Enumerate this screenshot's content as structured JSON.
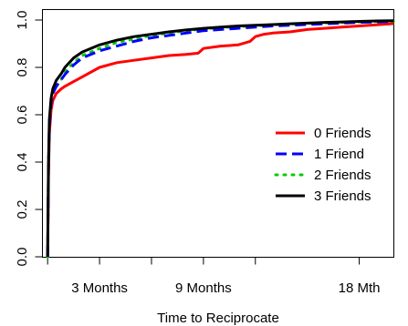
{
  "chart_data": {
    "type": "line",
    "xlabel": "Time to Reciprocate",
    "ylabel": "",
    "xlim": [
      -0.3,
      20
    ],
    "ylim": [
      0,
      1
    ],
    "grid": false,
    "legend_position": "right",
    "x_ticks": [
      {
        "value": 0,
        "label": ""
      },
      {
        "value": 3,
        "label": "3 Months"
      },
      {
        "value": 6,
        "label": ""
      },
      {
        "value": 9,
        "label": "9 Months"
      },
      {
        "value": 12,
        "label": ""
      },
      {
        "value": 18,
        "label": "18 Mth"
      }
    ],
    "y_ticks": [
      {
        "value": 0,
        "label": "0.0"
      },
      {
        "value": 0.2,
        "label": "0.2"
      },
      {
        "value": 0.4,
        "label": "0.4"
      },
      {
        "value": 0.6,
        "label": "0.6"
      },
      {
        "value": 0.8,
        "label": "0.8"
      },
      {
        "value": 1,
        "label": "1.0"
      }
    ],
    "series": [
      {
        "name": "0 Friends",
        "color": "#ff0000",
        "dash": "solid",
        "x": [
          0,
          0.05,
          0.1,
          0.2,
          0.3,
          0.5,
          0.8,
          1.0,
          1.5,
          2.0,
          3.0,
          4.0,
          5.0,
          6.0,
          7.0,
          8.0,
          8.7,
          9.0,
          10.0,
          11.0,
          11.7,
          12.0,
          12.5,
          13.0,
          14.0,
          15.0,
          16.0,
          17.0,
          18.0,
          19.0,
          20.0
        ],
        "y": [
          0,
          0.35,
          0.52,
          0.62,
          0.66,
          0.69,
          0.71,
          0.72,
          0.74,
          0.76,
          0.8,
          0.82,
          0.83,
          0.84,
          0.85,
          0.855,
          0.86,
          0.88,
          0.89,
          0.895,
          0.91,
          0.93,
          0.94,
          0.945,
          0.95,
          0.96,
          0.965,
          0.97,
          0.975,
          0.98,
          0.985
        ]
      },
      {
        "name": "1 Friend",
        "color": "#0000ff",
        "dash": "dashed",
        "x": [
          0,
          0.05,
          0.1,
          0.2,
          0.3,
          0.5,
          0.8,
          1.0,
          1.5,
          2.0,
          3.0,
          4.0,
          5.0,
          6.0,
          7.0,
          8.0,
          9.0,
          10.0,
          11.0,
          12.0,
          13.0,
          14.0,
          15.0,
          16.0,
          17.0,
          18.0,
          19.0,
          20.0
        ],
        "y": [
          0,
          0.38,
          0.55,
          0.65,
          0.69,
          0.72,
          0.75,
          0.77,
          0.81,
          0.84,
          0.87,
          0.89,
          0.91,
          0.925,
          0.935,
          0.945,
          0.955,
          0.96,
          0.965,
          0.97,
          0.975,
          0.978,
          0.981,
          0.984,
          0.987,
          0.99,
          0.992,
          0.994
        ]
      },
      {
        "name": "2 Friends",
        "color": "#00cc00",
        "dash": "dotted",
        "x": [
          0,
          0.05,
          0.1,
          0.2,
          0.3,
          0.5,
          0.8,
          1.0,
          1.5,
          2.0,
          3.0,
          4.0,
          5.0,
          6.0,
          7.0,
          8.0,
          9.0,
          10.0,
          11.0,
          12.0,
          13.0,
          14.0,
          15.0,
          16.0,
          17.0,
          18.0,
          19.0,
          20.0
        ],
        "y": [
          0,
          0.38,
          0.56,
          0.65,
          0.69,
          0.72,
          0.75,
          0.78,
          0.82,
          0.85,
          0.88,
          0.905,
          0.92,
          0.935,
          0.945,
          0.955,
          0.962,
          0.968,
          0.972,
          0.976,
          0.98,
          0.983,
          0.986,
          0.988,
          0.99,
          0.992,
          0.994,
          0.995
        ]
      },
      {
        "name": "3 Friends",
        "color": "#000000",
        "dash": "solid",
        "x": [
          0,
          0.05,
          0.1,
          0.2,
          0.3,
          0.5,
          0.8,
          1.0,
          1.5,
          2.0,
          3.0,
          4.0,
          5.0,
          6.0,
          7.0,
          8.0,
          9.0,
          10.0,
          11.0,
          12.0,
          13.0,
          14.0,
          15.0,
          16.0,
          17.0,
          18.0,
          19.0,
          20.0
        ],
        "y": [
          0,
          0.4,
          0.58,
          0.67,
          0.71,
          0.745,
          0.775,
          0.8,
          0.84,
          0.865,
          0.895,
          0.915,
          0.93,
          0.94,
          0.95,
          0.958,
          0.965,
          0.97,
          0.975,
          0.978,
          0.981,
          0.984,
          0.987,
          0.99,
          0.992,
          0.994,
          0.996,
          0.997
        ]
      }
    ]
  }
}
